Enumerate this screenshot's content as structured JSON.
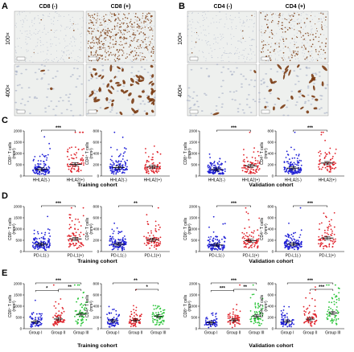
{
  "panel_labels": {
    "A": "A",
    "B": "B",
    "C": "C",
    "D": "D",
    "E": "E"
  },
  "micrographs": {
    "A": {
      "col_headers": [
        "CD8 (-)",
        "CD8 (+)"
      ],
      "row_labels": [
        "100×",
        "400×"
      ],
      "stain": "CD8"
    },
    "B": {
      "col_headers": [
        "CD4 (-)",
        "CD4 (+)"
      ],
      "row_labels": [
        "100×",
        "400×"
      ],
      "stain": "CD4"
    }
  },
  "colors": {
    "group1": "#1f1fd6",
    "group2": "#e0222a",
    "group3": "#2bc43a",
    "stain_brown": "#7a3b12",
    "tissue_bg": "#eef0ee",
    "hematoxylin": "#9aa4c0"
  },
  "cohorts": {
    "training": "Training cohort",
    "validation": "Validation cohort"
  },
  "chart_data": [
    {
      "id": "C1",
      "type": "scatter",
      "row": "C",
      "ylabel": "CD8⁺ T cells (mm²)",
      "ylim": [
        0,
        2000
      ],
      "yticks": [
        0,
        500,
        1000,
        1500,
        2000
      ],
      "categories": [
        "HHLA2(-)",
        "HHLA2(+)"
      ],
      "series": [
        {
          "values": [
            300,
            520
          ]
        }
      ],
      "significance": [
        {
          "pair": [
            0,
            1
          ],
          "label": "***"
        }
      ]
    },
    {
      "id": "C2",
      "type": "scatter",
      "row": "C",
      "ylabel": "CD4⁺ T cells (mm²)",
      "ylim": [
        0,
        800
      ],
      "yticks": [
        0,
        200,
        400,
        600,
        800
      ],
      "categories": [
        "HHLA2(-)",
        "HHLA2(+)"
      ],
      "series": [
        {
          "values": [
            150,
            160
          ]
        }
      ],
      "significance": []
    },
    {
      "id": "C3",
      "type": "scatter",
      "row": "C",
      "ylabel": "CD8⁺ T cells (mm²)",
      "ylim": [
        0,
        2000
      ],
      "yticks": [
        0,
        500,
        1000,
        1500,
        2000
      ],
      "categories": [
        "HHLA2(-)",
        "HHLA2(+)"
      ],
      "series": [
        {
          "values": [
            290,
            450
          ]
        }
      ],
      "significance": [
        {
          "pair": [
            0,
            1
          ],
          "label": "***"
        }
      ]
    },
    {
      "id": "C4",
      "type": "scatter",
      "row": "C",
      "ylabel": "CD4⁺ T cells (mm²)",
      "ylim": [
        0,
        800
      ],
      "yticks": [
        0,
        200,
        400,
        600,
        800
      ],
      "categories": [
        "HHLA2(-)",
        "HHLA2(+)"
      ],
      "series": [
        {
          "values": [
            140,
            230
          ]
        }
      ],
      "significance": [
        {
          "pair": [
            0,
            1
          ],
          "label": "***"
        }
      ]
    },
    {
      "id": "D1",
      "type": "scatter",
      "row": "D",
      "ylabel": "CD8⁺ T cells (mm²)",
      "ylim": [
        0,
        2000
      ],
      "yticks": [
        0,
        500,
        1000,
        1500,
        2000
      ],
      "categories": [
        "PD-L1(-)",
        "PD-L1(+)"
      ],
      "series": [
        {
          "values": [
            320,
            560
          ]
        }
      ],
      "significance": [
        {
          "pair": [
            0,
            1
          ],
          "label": "***"
        }
      ]
    },
    {
      "id": "D2",
      "type": "scatter",
      "row": "D",
      "ylabel": "CD4⁺ T cells (mm²)",
      "ylim": [
        0,
        800
      ],
      "yticks": [
        0,
        200,
        400,
        600,
        800
      ],
      "categories": [
        "PD-L1(-)",
        "PD-L1(+)"
      ],
      "series": [
        {
          "values": [
            130,
            210
          ]
        }
      ],
      "significance": [
        {
          "pair": [
            0,
            1
          ],
          "label": "**"
        }
      ]
    },
    {
      "id": "D3",
      "type": "scatter",
      "row": "D",
      "ylabel": "CD8⁺ T cells (mm²)",
      "ylim": [
        0,
        2000
      ],
      "yticks": [
        0,
        500,
        1000,
        1500,
        2000
      ],
      "categories": [
        "PD-L1(-)",
        "PD-L1(+)"
      ],
      "series": [
        {
          "values": [
            290,
            480
          ]
        }
      ],
      "significance": [
        {
          "pair": [
            0,
            1
          ],
          "label": "***"
        }
      ]
    },
    {
      "id": "D4",
      "type": "scatter",
      "row": "D",
      "ylabel": "CD4⁺ T cells (mm²)",
      "ylim": [
        0,
        800
      ],
      "yticks": [
        0,
        200,
        400,
        600,
        800
      ],
      "categories": [
        "PD-L1(-)",
        "PD-L1(+)"
      ],
      "series": [
        {
          "values": [
            130,
            240
          ]
        }
      ],
      "significance": [
        {
          "pair": [
            0,
            1
          ],
          "label": "***"
        }
      ]
    },
    {
      "id": "E1",
      "type": "scatter",
      "row": "E",
      "ylabel": "CD8⁺ T cells (mm²)",
      "ylim": [
        0,
        2000
      ],
      "yticks": [
        0,
        500,
        1000,
        1500,
        2000
      ],
      "categories": [
        "Group I",
        "Group II",
        "Group III"
      ],
      "series": [
        {
          "values": [
            300,
            430,
            640
          ]
        }
      ],
      "significance": [
        {
          "pair": [
            0,
            2
          ],
          "label": "***"
        },
        {
          "pair": [
            0,
            1
          ],
          "label": "*"
        },
        {
          "pair": [
            1,
            2
          ],
          "label": "**"
        }
      ]
    },
    {
      "id": "E2",
      "type": "scatter",
      "row": "E",
      "ylabel": "CD4⁺ T cells (mm²)",
      "ylim": [
        0,
        800
      ],
      "yticks": [
        0,
        200,
        400,
        600,
        800
      ],
      "categories": [
        "Group I",
        "Group II",
        "Group III"
      ],
      "series": [
        {
          "values": [
            140,
            150,
            220
          ]
        }
      ],
      "significance": [
        {
          "pair": [
            0,
            2
          ],
          "label": "**"
        },
        {
          "pair": [
            1,
            2
          ],
          "label": "*"
        }
      ]
    },
    {
      "id": "E3",
      "type": "scatter",
      "row": "E",
      "ylabel": "CD8⁺ T cells (mm²)",
      "ylim": [
        0,
        2000
      ],
      "yticks": [
        0,
        500,
        1000,
        1500,
        2000
      ],
      "categories": [
        "Group I",
        "Group II",
        "Group III"
      ],
      "series": [
        {
          "values": [
            270,
            380,
            560
          ]
        }
      ],
      "significance": [
        {
          "pair": [
            0,
            2
          ],
          "label": "***"
        },
        {
          "pair": [
            0,
            1
          ],
          "label": "***"
        },
        {
          "pair": [
            1,
            2
          ],
          "label": "**"
        }
      ]
    },
    {
      "id": "E4",
      "type": "scatter",
      "row": "E",
      "ylabel": "CD4⁺ T cells (mm²)",
      "ylim": [
        0,
        800
      ],
      "yticks": [
        0,
        200,
        400,
        600,
        800
      ],
      "categories": [
        "Group I",
        "Group II",
        "Group III"
      ],
      "series": [
        {
          "values": [
            130,
            170,
            280
          ]
        }
      ],
      "significance": [
        {
          "pair": [
            0,
            2
          ],
          "label": "***"
        },
        {
          "pair": [
            1,
            2
          ],
          "label": "***"
        }
      ]
    }
  ]
}
